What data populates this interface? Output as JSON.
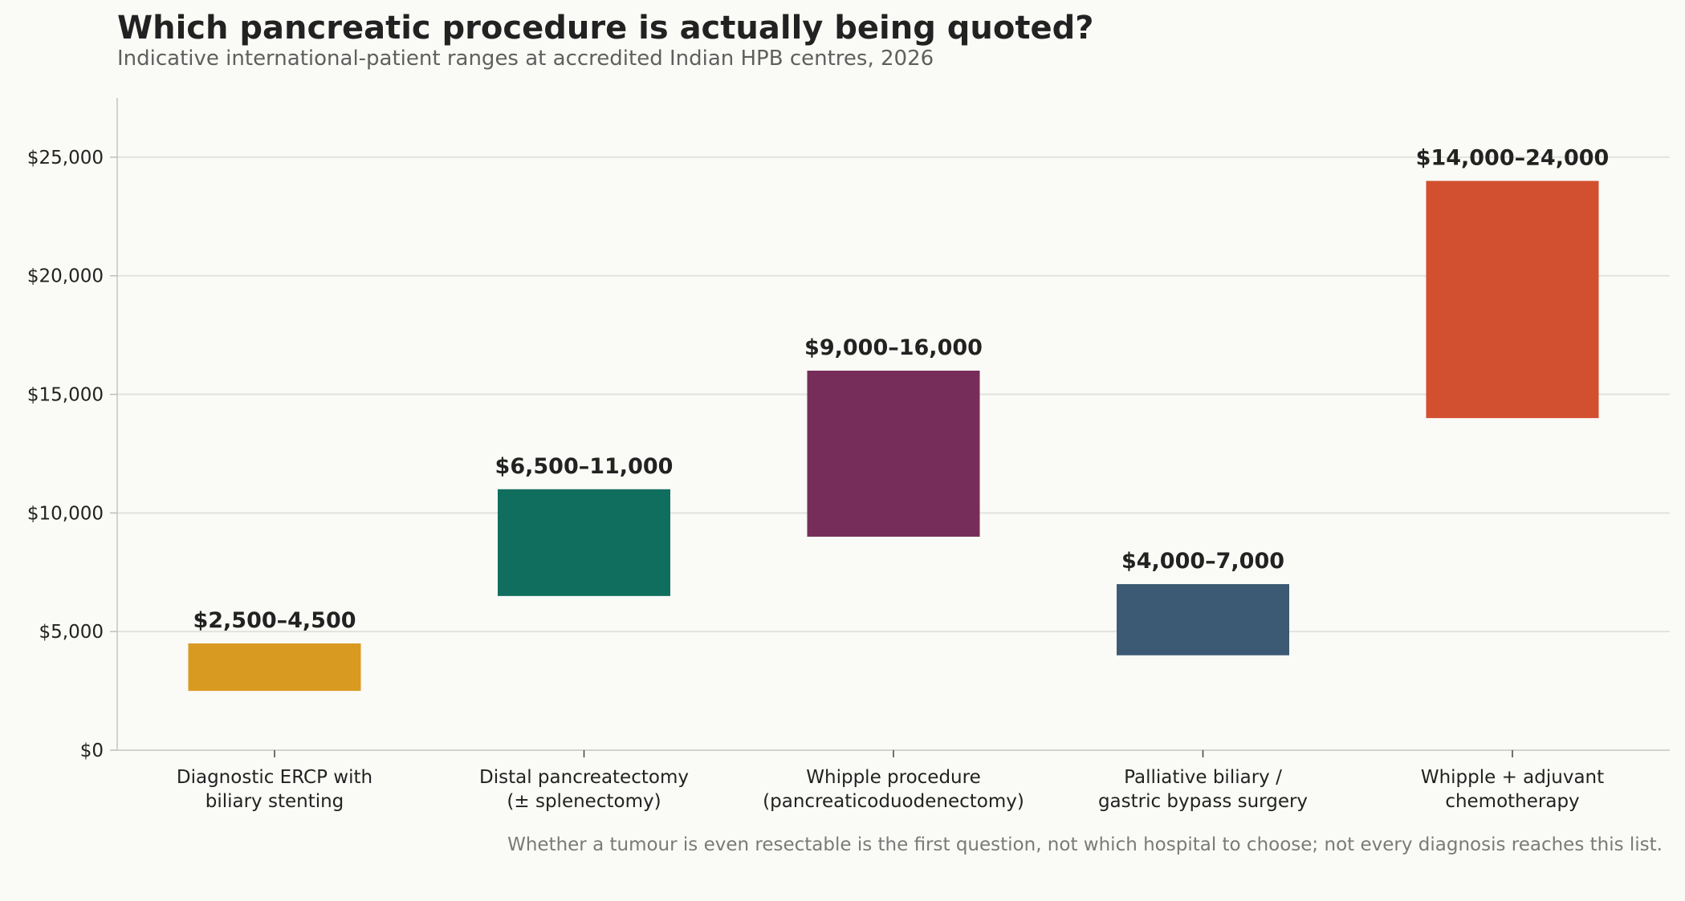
{
  "header": {
    "title": "Which pancreatic procedure is actually being quoted?",
    "subtitle": "Indicative international-patient ranges at accredited Indian HPB centres, 2026"
  },
  "footnote": "Whether a tumour is even resectable is the first question, not which hospital to choose; not every diagnosis reaches this list.",
  "chart_data": {
    "type": "bar",
    "subtype": "floating-range",
    "title": "Which pancreatic procedure is actually being quoted?",
    "subtitle": "Indicative international-patient ranges at accredited Indian HPB centres, 2026",
    "xlabel": "",
    "ylabel": "",
    "ylim": [
      0,
      27500
    ],
    "yticks": [
      0,
      5000,
      10000,
      15000,
      20000,
      25000
    ],
    "ytick_labels": [
      "$0",
      "$5,000",
      "$10,000",
      "$15,000",
      "$20,000",
      "$25,000"
    ],
    "grid": "horizontal",
    "legend": "none",
    "categories": [
      [
        "Diagnostic ERCP with",
        "biliary stenting"
      ],
      [
        "Distal pancreatectomy",
        "(± splenectomy)"
      ],
      [
        "Whipple procedure",
        "(pancreaticoduodenectomy)"
      ],
      [
        "Palliative biliary /",
        "gastric bypass surgery"
      ],
      [
        "Whipple + adjuvant",
        "chemotherapy"
      ]
    ],
    "low": [
      2500,
      6500,
      9000,
      4000,
      14000
    ],
    "high": [
      4500,
      11000,
      16000,
      7000,
      24000
    ],
    "labels": [
      "$2,500–4,500",
      "$6,500–11,000",
      "$9,000–16,000",
      "$4,000–7,000",
      "$14,000–24,000"
    ],
    "colors": [
      "#d99a22",
      "#0f6e5e",
      "#772d59",
      "#3c5a73",
      "#d25030"
    ]
  }
}
